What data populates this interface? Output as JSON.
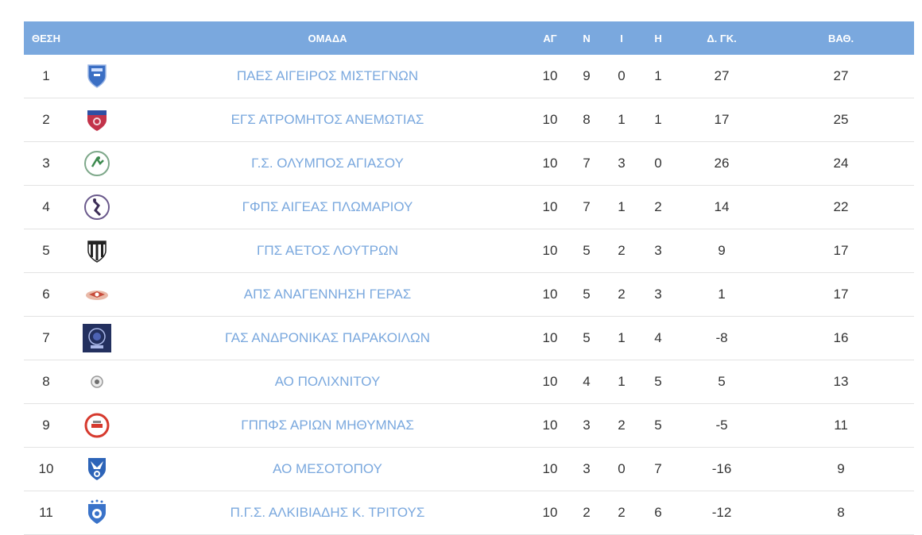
{
  "table": {
    "headers": {
      "position": "ΘΕΣΗ",
      "team": "ΟΜΑΔΑ",
      "played": "ΑΓ",
      "wins": "Ν",
      "draws": "Ι",
      "losses": "Η",
      "goal_diff": "Δ. ΓΚ.",
      "points": "ΒΑΘ."
    },
    "rows": [
      {
        "pos": "1",
        "logo": "shield-blue-logo",
        "team": "ΠΑΕΣ ΑΙΓΕΙΡΟΣ ΜΙΣΤΕΓΝΩΝ",
        "played": "10",
        "wins": "9",
        "draws": "0",
        "losses": "1",
        "gd": "27",
        "pts": "27"
      },
      {
        "pos": "2",
        "logo": "shield-red-logo",
        "team": "ΕΓΣ ΑΤΡΟΜΗΤΟΣ ΑΝΕΜΩΤΙΑΣ",
        "played": "10",
        "wins": "8",
        "draws": "1",
        "losses": "1",
        "gd": "17",
        "pts": "25"
      },
      {
        "pos": "3",
        "logo": "circle-green-logo",
        "team": "Γ.Σ. ΟΛΥΜΠΟΣ ΑΓΙΑΣΟΥ",
        "played": "10",
        "wins": "7",
        "draws": "3",
        "losses": "0",
        "gd": "26",
        "pts": "24"
      },
      {
        "pos": "4",
        "logo": "circle-purple-logo",
        "team": "ΓΦΠΣ ΑΙΓΕΑΣ ΠΛΩΜΑΡΙΟΥ",
        "played": "10",
        "wins": "7",
        "draws": "1",
        "losses": "2",
        "gd": "14",
        "pts": "22"
      },
      {
        "pos": "5",
        "logo": "shield-stripes-logo",
        "team": "ΓΠΣ ΑΕΤΟΣ ΛΟΥΤΡΩΝ",
        "played": "10",
        "wins": "5",
        "draws": "2",
        "losses": "3",
        "gd": "9",
        "pts": "17"
      },
      {
        "pos": "6",
        "logo": "bird-logo",
        "team": "ΑΠΣ ΑΝΑΓΕΝΝΗΣΗ ΓΕΡΑΣ",
        "played": "10",
        "wins": "5",
        "draws": "2",
        "losses": "3",
        "gd": "1",
        "pts": "17"
      },
      {
        "pos": "7",
        "logo": "square-navy-logo",
        "team": "ΓΑΣ ΑΝΔΡΟΝΙΚΑΣ ΠΑΡΑΚΟΙΛΩΝ",
        "played": "10",
        "wins": "5",
        "draws": "1",
        "losses": "4",
        "gd": "-8",
        "pts": "16"
      },
      {
        "pos": "8",
        "logo": "circle-grey-logo",
        "team": "ΑΟ ΠΟΛΙΧΝΙΤΟΥ",
        "played": "10",
        "wins": "4",
        "draws": "1",
        "losses": "5",
        "gd": "5",
        "pts": "13"
      },
      {
        "pos": "9",
        "logo": "circle-red-logo",
        "team": "ΓΠΠΦΣ ΑΡΙΩΝ ΜΗΘΥΜΝΑΣ",
        "played": "10",
        "wins": "3",
        "draws": "2",
        "losses": "5",
        "gd": "-5",
        "pts": "11"
      },
      {
        "pos": "10",
        "logo": "shield-blue-eagle-logo",
        "team": "ΑΟ ΜΕΣΟΤΟΠΟΥ",
        "played": "10",
        "wins": "3",
        "draws": "0",
        "losses": "7",
        "gd": "-16",
        "pts": "9"
      },
      {
        "pos": "11",
        "logo": "shield-blue-stars-logo",
        "team": "Π.Γ.Σ. ΑΛΚΙΒΙΑΔΗΣ Κ. ΤΡΙΤΟΥΣ",
        "played": "10",
        "wins": "2",
        "draws": "2",
        "losses": "6",
        "gd": "-12",
        "pts": "8"
      }
    ]
  },
  "colors": {
    "header_bg": "#7aa8de",
    "team_link": "#7aa8de",
    "row_border": "#e3e3e3",
    "text": "#333333"
  }
}
